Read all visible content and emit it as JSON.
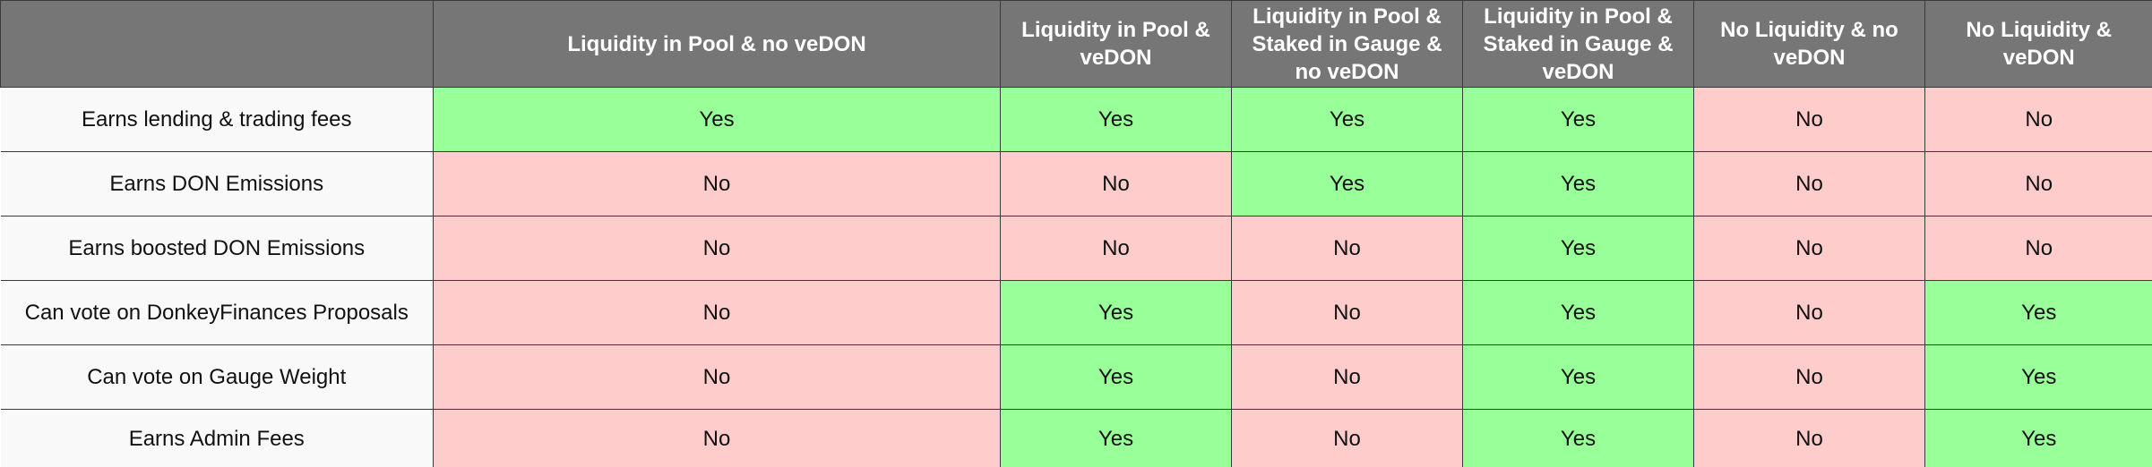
{
  "table": {
    "headers": [
      "",
      "Liquidity in Pool & no veDON",
      "Liquidity in Pool & veDON",
      "Liquidity in Pool & Staked in Gauge & no veDON",
      "Liquidity in Pool & Staked in Gauge & veDON",
      "No Liquidity & no veDON",
      "No Liquidity & veDON"
    ],
    "rows": [
      {
        "label": "Earns lending & trading fees",
        "cells": [
          "Yes",
          "Yes",
          "Yes",
          "Yes",
          "No",
          "No"
        ]
      },
      {
        "label": "Earns DON Emissions",
        "cells": [
          "No",
          "No",
          "Yes",
          "Yes",
          "No",
          "No"
        ]
      },
      {
        "label": "Earns boosted DON Emissions",
        "cells": [
          "No",
          "No",
          "No",
          "Yes",
          "No",
          "No"
        ]
      },
      {
        "label": "Can vote on DonkeyFinances Proposals",
        "cells": [
          "No",
          "Yes",
          "No",
          "Yes",
          "No",
          "Yes"
        ]
      },
      {
        "label": "Can vote on Gauge Weight",
        "cells": [
          "No",
          "Yes",
          "No",
          "Yes",
          "No",
          "Yes"
        ]
      },
      {
        "label": "Earns Admin Fees",
        "cells": [
          "No",
          "Yes",
          "No",
          "Yes",
          "No",
          "Yes"
        ]
      }
    ]
  },
  "colors": {
    "header_bg": "#767676",
    "header_text": "#ffffff",
    "yes_bg": "#99ff99",
    "no_bg": "#ffcccc",
    "label_bg": "#f9f9f9",
    "border": "#3a3a3a"
  }
}
